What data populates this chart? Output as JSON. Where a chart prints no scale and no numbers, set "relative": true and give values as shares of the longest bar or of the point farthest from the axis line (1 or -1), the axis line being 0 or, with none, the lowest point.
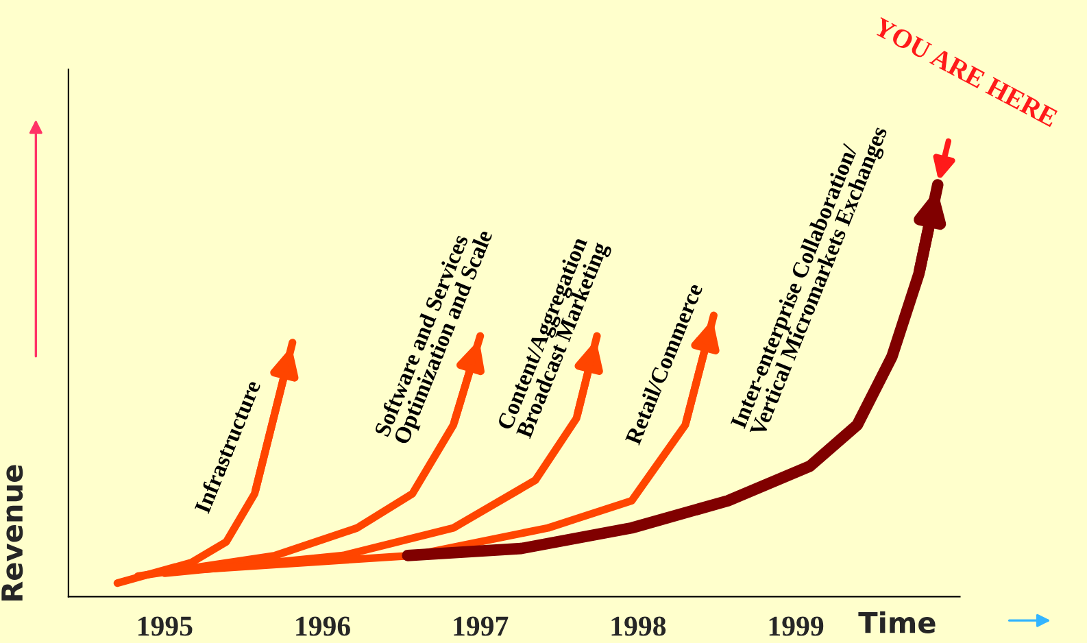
{
  "chart_data": {
    "type": "line",
    "relative": true,
    "xlabel": "Time",
    "ylabel": "Revenue",
    "xlim": [
      1994.39,
      2000.04
    ],
    "xticks": [
      1995,
      1996,
      1997,
      1998,
      1999
    ],
    "grid": false,
    "marker": "none",
    "line_style": "solid",
    "series": [
      {
        "name": "Infrastructure",
        "color": "#ff4500",
        "x": [
          1994.7,
          1995.17,
          1995.39,
          1995.57,
          1995.81
        ],
        "values": [
          0.033,
          0.083,
          0.133,
          0.25,
          0.617
        ]
      },
      {
        "name": "Software and Services\nOptimization and Scale",
        "color": "#ff4500",
        "x": [
          1994.83,
          1995.7,
          1996.22,
          1996.57,
          1996.83,
          1997.0
        ],
        "values": [
          0.05,
          0.1,
          0.167,
          0.25,
          0.417,
          0.633
        ]
      },
      {
        "name": "Content/Aggregation\nBroadcast Marketing",
        "color": "#ff4500",
        "x": [
          1995.0,
          1996.13,
          1996.83,
          1997.35,
          1997.61,
          1997.74
        ],
        "values": [
          0.057,
          0.1,
          0.167,
          0.283,
          0.433,
          0.633
        ]
      },
      {
        "name": "Retail/Commerce",
        "color": "#ff4500",
        "x": [
          1995.26,
          1996.57,
          1997.43,
          1997.96,
          1998.3,
          1998.48
        ],
        "values": [
          0.067,
          0.1,
          0.167,
          0.233,
          0.417,
          0.683
        ]
      },
      {
        "name": "Inter-enterprise Collaboration/\nVertical Micromarkets Exchanges",
        "color": "#800000",
        "x": [
          1996.54,
          1997.26,
          1997.96,
          1998.57,
          1999.09,
          1999.39,
          1999.61,
          1999.78,
          1999.9
        ],
        "values": [
          0.1,
          0.117,
          0.167,
          0.233,
          0.317,
          0.417,
          0.583,
          0.783,
          1.0
        ]
      }
    ],
    "annotations": [
      {
        "text": "YOU ARE HERE",
        "x": 1999.9,
        "y": 1.0
      }
    ]
  }
}
